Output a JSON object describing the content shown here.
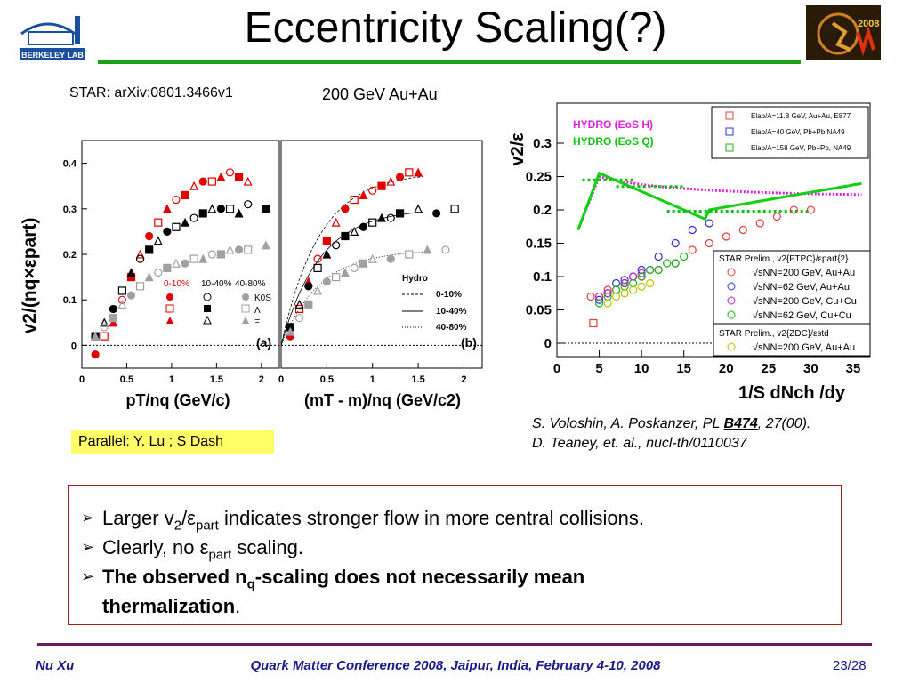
{
  "slide": {
    "title": "Eccentricity Scaling(?)",
    "source_ref": "STAR: arXiv:0801.3466v1",
    "energy_label": "200 GeV Au+Au",
    "logos": {
      "left_text": "BERKELEY LAB",
      "right_text": "2008"
    },
    "note": "Parallel: Y. Lu ; S Dash",
    "citation_line1_pre": "S. Voloshin, A. Poskanzer, PL ",
    "citation_line1_bold": "B474",
    "citation_line1_post": ", 27(00).",
    "citation_line2": "D. Teaney, et. al.,  nucl-th/0110037"
  },
  "bullets": {
    "b1_pre": "Larger v",
    "b1_sub1": "2",
    "b1_mid": "/ε",
    "b1_sub2": "part",
    "b1_post": " indicates stronger flow in more central collisions.",
    "b2_pre": "Clearly,  no ε",
    "b2_sub": "part",
    "b2_post": " scaling.",
    "b3_pre": "The observed n",
    "b3_sub": "q",
    "b3_post": "-scaling does not necessarily mean",
    "b3_line2": "thermalization",
    "b3_end": "."
  },
  "footer": {
    "author": "Nu Xu",
    "conference": "Quark Matter Conference 2008, Jaipur, India, February 4-10, 2008",
    "page": "23/28"
  },
  "colors": {
    "accent_green": "#18a018",
    "footer_rule": "#6b1a5e",
    "footer_text": "#1a1a8a",
    "box_border": "#a02020",
    "note_bg": "#ffff66"
  },
  "chart_data": [
    {
      "type": "scatter",
      "panel": "(a)",
      "xlabel": "pT/nq (GeV/c)",
      "ylabel": "v2/(nq×εpart)",
      "xlim": [
        0,
        2.2
      ],
      "ylim": [
        -0.05,
        0.45
      ],
      "xticks": [
        "0",
        "0.5",
        "1",
        "1.5",
        "2"
      ],
      "yticks": [
        "0",
        "0.1",
        "0.2",
        "0.3",
        "0.4"
      ],
      "legend_rows": [
        "0-10%",
        "10-40%",
        "40-80%"
      ],
      "legend_particles": [
        "K0S",
        "Λ",
        "Ξ"
      ],
      "series": [
        {
          "name": "0-10%",
          "color": "#e00000",
          "x": [
            0.15,
            0.25,
            0.35,
            0.45,
            0.55,
            0.65,
            0.75,
            0.85,
            0.95,
            1.05,
            1.15,
            1.25,
            1.35,
            1.45,
            1.55,
            1.65,
            1.75,
            1.85
          ],
          "y": [
            -0.02,
            0.02,
            0.05,
            0.1,
            0.15,
            0.2,
            0.24,
            0.27,
            0.3,
            0.32,
            0.33,
            0.35,
            0.36,
            0.36,
            0.37,
            0.38,
            0.37,
            0.36
          ]
        },
        {
          "name": "10-40%",
          "color": "#000000",
          "x": [
            0.15,
            0.25,
            0.35,
            0.45,
            0.55,
            0.65,
            0.75,
            0.85,
            0.95,
            1.05,
            1.15,
            1.25,
            1.35,
            1.45,
            1.55,
            1.65,
            1.75,
            1.85,
            2.05
          ],
          "y": [
            0.02,
            0.05,
            0.08,
            0.12,
            0.16,
            0.19,
            0.21,
            0.23,
            0.25,
            0.26,
            0.27,
            0.28,
            0.29,
            0.3,
            0.3,
            0.3,
            0.29,
            0.31,
            0.3
          ]
        },
        {
          "name": "40-80%",
          "color": "#a0a0a0",
          "x": [
            0.15,
            0.25,
            0.35,
            0.45,
            0.55,
            0.65,
            0.75,
            0.85,
            0.95,
            1.05,
            1.15,
            1.25,
            1.35,
            1.45,
            1.55,
            1.65,
            1.75,
            1.85,
            2.05
          ],
          "y": [
            0.02,
            0.04,
            0.06,
            0.09,
            0.11,
            0.13,
            0.15,
            0.16,
            0.17,
            0.18,
            0.18,
            0.19,
            0.19,
            0.2,
            0.2,
            0.21,
            0.21,
            0.21,
            0.22
          ]
        }
      ]
    },
    {
      "type": "scatter",
      "panel": "(b)",
      "xlabel": "(mT - m)/nq (GeV/c2)",
      "xlim": [
        0,
        2.2
      ],
      "ylim": [
        -0.05,
        0.45
      ],
      "xticks": [
        "0",
        "0.5",
        "1",
        "1.5",
        "2"
      ],
      "legend_title": "Hydro",
      "legend_entries": [
        "0-10%",
        "10-40%",
        "40-80%"
      ],
      "series": [
        {
          "name": "0-10%",
          "color": "#e00000",
          "x": [
            0.1,
            0.2,
            0.3,
            0.4,
            0.5,
            0.6,
            0.7,
            0.8,
            0.9,
            1.0,
            1.1,
            1.2,
            1.3,
            1.4,
            1.5
          ],
          "y": [
            0.02,
            0.08,
            0.14,
            0.19,
            0.23,
            0.27,
            0.3,
            0.32,
            0.33,
            0.34,
            0.35,
            0.36,
            0.37,
            0.38,
            0.38
          ]
        },
        {
          "name": "10-40%",
          "color": "#000000",
          "x": [
            0.1,
            0.2,
            0.3,
            0.4,
            0.5,
            0.6,
            0.7,
            0.8,
            0.9,
            1.0,
            1.1,
            1.2,
            1.3,
            1.5,
            1.7,
            1.9
          ],
          "y": [
            0.04,
            0.09,
            0.13,
            0.17,
            0.2,
            0.22,
            0.24,
            0.25,
            0.26,
            0.27,
            0.28,
            0.28,
            0.29,
            0.3,
            0.29,
            0.3
          ]
        },
        {
          "name": "40-80%",
          "color": "#a0a0a0",
          "x": [
            0.1,
            0.2,
            0.3,
            0.4,
            0.5,
            0.6,
            0.7,
            0.8,
            0.9,
            1.0,
            1.2,
            1.4,
            1.6,
            1.8
          ],
          "y": [
            0.03,
            0.06,
            0.09,
            0.12,
            0.14,
            0.15,
            0.16,
            0.17,
            0.18,
            0.19,
            0.19,
            0.2,
            0.21,
            0.21
          ]
        }
      ]
    },
    {
      "type": "scatter",
      "xlabel": "1/S dNch /dy",
      "ylabel": "v2/ε",
      "xlim": [
        0,
        37
      ],
      "ylim": [
        -0.02,
        0.36
      ],
      "xticks": [
        "0",
        "5",
        "10",
        "15",
        "20",
        "25",
        "30",
        "35"
      ],
      "yticks": [
        "0",
        "0.05",
        "0.1",
        "0.15",
        "0.2",
        "0.25",
        "0.3"
      ],
      "hydro_labels": [
        "HYDRO (EoS H)",
        "HYDRO (EoS Q)"
      ],
      "top_legend": [
        "Elab/A=11.8 GeV, Au+Au, E877",
        "Elab/A=40 GeV, Pb+Pb NA49",
        "Elab/A=158 GeV, Pb+Pb, NA49"
      ],
      "star_legend_title": "STAR Prelim., v2{FTPC}/εpart{2}",
      "star_legend": [
        "√sNN=200 GeV, Au+Au",
        "√sNN=62 GeV, Au+Au",
        "√sNN=200 GeV, Cu+Cu",
        "√sNN=62 GeV, Cu+Cu"
      ],
      "zdc_legend_title": "STAR Prelim., v2{ZDC}/εstd",
      "zdc_legend": [
        "√sNN=200 GeV, Au+Au"
      ],
      "series": [
        {
          "name": "√sNN=200 GeV, Au+Au",
          "color": "#e04040",
          "x": [
            4,
            6,
            8,
            10,
            12,
            14,
            16,
            18,
            20,
            22,
            24,
            26,
            28,
            30
          ],
          "y": [
            0.07,
            0.08,
            0.09,
            0.1,
            0.11,
            0.12,
            0.14,
            0.15,
            0.16,
            0.17,
            0.18,
            0.19,
            0.2,
            0.2
          ]
        },
        {
          "name": "√sNN=62 GeV, Au+Au",
          "color": "#3030d0",
          "x": [
            5,
            6,
            7,
            8,
            9,
            10,
            12,
            14,
            16,
            18
          ],
          "y": [
            0.065,
            0.075,
            0.09,
            0.095,
            0.1,
            0.11,
            0.13,
            0.15,
            0.17,
            0.18
          ]
        },
        {
          "name": "√sNN=200 GeV, Cu+Cu",
          "color": "#c020c0",
          "x": [
            5,
            6,
            7,
            8,
            9,
            10,
            11
          ],
          "y": [
            0.07,
            0.075,
            0.08,
            0.09,
            0.1,
            0.105,
            0.11
          ]
        },
        {
          "name": "√sNN=62 GeV, Cu+Cu",
          "color": "#20b020",
          "x": [
            5,
            6,
            7,
            8,
            9,
            10,
            11,
            12,
            13,
            14,
            15
          ],
          "y": [
            0.06,
            0.07,
            0.08,
            0.085,
            0.09,
            0.1,
            0.11,
            0.11,
            0.12,
            0.12,
            0.13
          ]
        },
        {
          "name": "√sNN=200 GeV, Au+Au",
          "color": "#c0c000",
          "x": [
            6,
            7,
            8,
            9,
            10,
            11
          ],
          "y": [
            0.06,
            0.07,
            0.075,
            0.08,
            0.085,
            0.09
          ]
        },
        {
          "name": "Elab/A=11.8 GeV, Au+Au, E877",
          "color": "#e04040",
          "x": [
            4.3
          ],
          "y": [
            0.03
          ]
        }
      ]
    }
  ]
}
